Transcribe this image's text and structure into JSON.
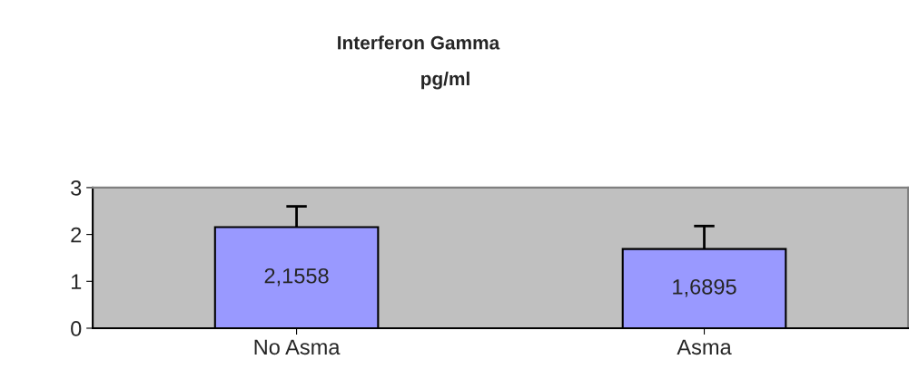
{
  "chart_data": {
    "type": "bar",
    "title": "Interferon Gamma",
    "subtitle": "pg/ml",
    "categories": [
      "No Asma",
      "Asma"
    ],
    "series": [
      {
        "color": "#9999ff",
        "values": [
          2.1558,
          1.6895
        ],
        "errors": [
          [
            2.1558,
            2.6
          ],
          [
            1.6895,
            2.18
          ]
        ],
        "value_labels": [
          "2,1558",
          "1,6895"
        ]
      }
    ],
    "ylim": [
      0,
      3
    ],
    "yticks": [
      0,
      1,
      2,
      3
    ],
    "grid": false,
    "legend": false
  }
}
